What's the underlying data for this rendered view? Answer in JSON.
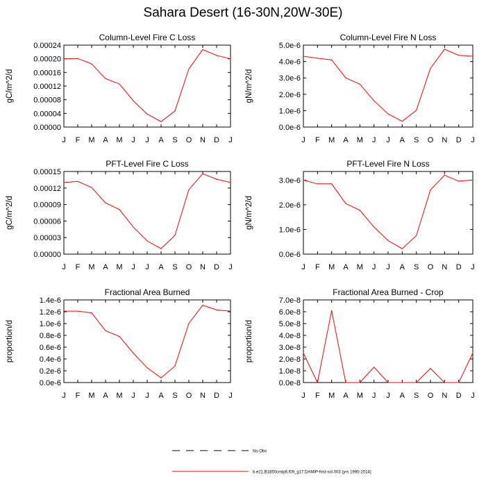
{
  "title": "Sahara Desert (16-30N,20W-30E)",
  "legend": {
    "obs_label": "No Obs",
    "model_label": "b.e21.B1850cmip6.f09_g17.DAMIP-hist-sol.003 (yrs 1990-2014)",
    "model_color": "#ff0000",
    "obs_color": "#000000"
  },
  "chart_data": [
    {
      "type": "line",
      "title": "Column-Level Fire C Loss",
      "ylabel": "gC/m^2/d",
      "categories": [
        "J",
        "F",
        "M",
        "A",
        "M",
        "J",
        "J",
        "A",
        "S",
        "O",
        "N",
        "D",
        "J"
      ],
      "yticks": [
        "0.00000",
        "0.00004",
        "0.00008",
        "0.00012",
        "0.00016",
        "0.00020",
        "0.00024"
      ],
      "ylim": [
        0,
        0.00024
      ],
      "series": [
        {
          "values": [
            0.0002,
            0.000201,
            0.000185,
            0.000142,
            0.000126,
            7.7e-05,
            3.8e-05,
            1.6e-05,
            4.7e-05,
            0.00017,
            0.000227,
            0.00021,
            0.0002
          ]
        }
      ]
    },
    {
      "type": "line",
      "title": "Column-Level Fire N Loss",
      "ylabel": "gN/m^2/d",
      "categories": [
        "J",
        "F",
        "M",
        "A",
        "M",
        "J",
        "J",
        "A",
        "S",
        "O",
        "N",
        "D",
        "J"
      ],
      "yticks": [
        "0.0e-6",
        "1.0e-6",
        "2.0e-6",
        "3.0e-6",
        "4.0e-6",
        "5.0e-6"
      ],
      "ylim": [
        0,
        5e-06
      ],
      "series": [
        {
          "values": [
            4.32e-06,
            4.2e-06,
            4.1e-06,
            3e-06,
            2.62e-06,
            1.6e-06,
            8e-07,
            3.5e-07,
            1.02e-06,
            3.58e-06,
            4.75e-06,
            4.38e-06,
            4.32e-06
          ]
        }
      ]
    },
    {
      "type": "line",
      "title": "PFT-Level Fire C Loss",
      "ylabel": "gC/m^2/d",
      "categories": [
        "J",
        "F",
        "M",
        "A",
        "M",
        "J",
        "J",
        "A",
        "S",
        "O",
        "N",
        "D",
        "J"
      ],
      "yticks": [
        "0.00000",
        "0.00003",
        "0.00006",
        "0.00009",
        "0.00012",
        "0.00015"
      ],
      "ylim": [
        0,
        0.00015
      ],
      "series": [
        {
          "values": [
            0.00013,
            0.000132,
            0.000121,
            9.3e-05,
            8.1e-05,
            4.9e-05,
            2.4e-05,
            1e-05,
            3.4e-05,
            0.000117,
            0.000146,
            0.000136,
            0.00013
          ]
        }
      ]
    },
    {
      "type": "line",
      "title": "PFT-Level Fire N Loss",
      "ylabel": "gN/m^2/d",
      "categories": [
        "J",
        "F",
        "M",
        "A",
        "M",
        "J",
        "J",
        "A",
        "S",
        "O",
        "N",
        "D",
        "J"
      ],
      "yticks": [
        "0.0e-6",
        "1.0e-6",
        "2.0e-6",
        "3.0e-6"
      ],
      "ylim": [
        0,
        3.35e-06
      ],
      "series": [
        {
          "values": [
            3e-06,
            2.85e-06,
            2.85e-06,
            2.05e-06,
            1.78e-06,
            1.1e-06,
            5.5e-07,
            2.2e-07,
            7.5e-07,
            2.6e-06,
            3.2e-06,
            2.96e-06,
            3e-06
          ]
        }
      ]
    },
    {
      "type": "line",
      "title": "Fractional Area Burned",
      "ylabel": "proportion/d",
      "categories": [
        "J",
        "F",
        "M",
        "A",
        "M",
        "J",
        "J",
        "A",
        "S",
        "O",
        "N",
        "D",
        "J"
      ],
      "yticks": [
        "0.0e-6",
        "0.2e-6",
        "0.4e-6",
        "0.6e-6",
        "0.8e-6",
        "1.0e-6",
        "1.2e-6",
        "1.4e-6"
      ],
      "ylim": [
        0,
        1.4e-06
      ],
      "series": [
        {
          "values": [
            1.21e-06,
            1.21e-06,
            1.18e-06,
            8.8e-07,
            7.8e-07,
            5e-07,
            2.5e-07,
            8e-08,
            2.8e-07,
            1e-06,
            1.31e-06,
            1.23e-06,
            1.21e-06
          ]
        }
      ]
    },
    {
      "type": "line",
      "title": "Fractional Area Burned - Crop",
      "ylabel": "proportion/d",
      "categories": [
        "J",
        "F",
        "M",
        "A",
        "M",
        "J",
        "J",
        "A",
        "S",
        "O",
        "N",
        "D",
        "J"
      ],
      "yticks": [
        "0.0e-8",
        "1.0e-8",
        "2.0e-8",
        "3.0e-8",
        "4.0e-8",
        "5.0e-8",
        "6.0e-8",
        "7.0e-8"
      ],
      "ylim": [
        0,
        7e-08
      ],
      "series": [
        {
          "values": [
            2.5e-08,
            0.0,
            6.1e-08,
            0.0,
            0.0,
            1.3e-08,
            0.0,
            0.0,
            0.0,
            1.2e-08,
            0.0,
            0.0,
            2.5e-08
          ]
        }
      ]
    }
  ]
}
